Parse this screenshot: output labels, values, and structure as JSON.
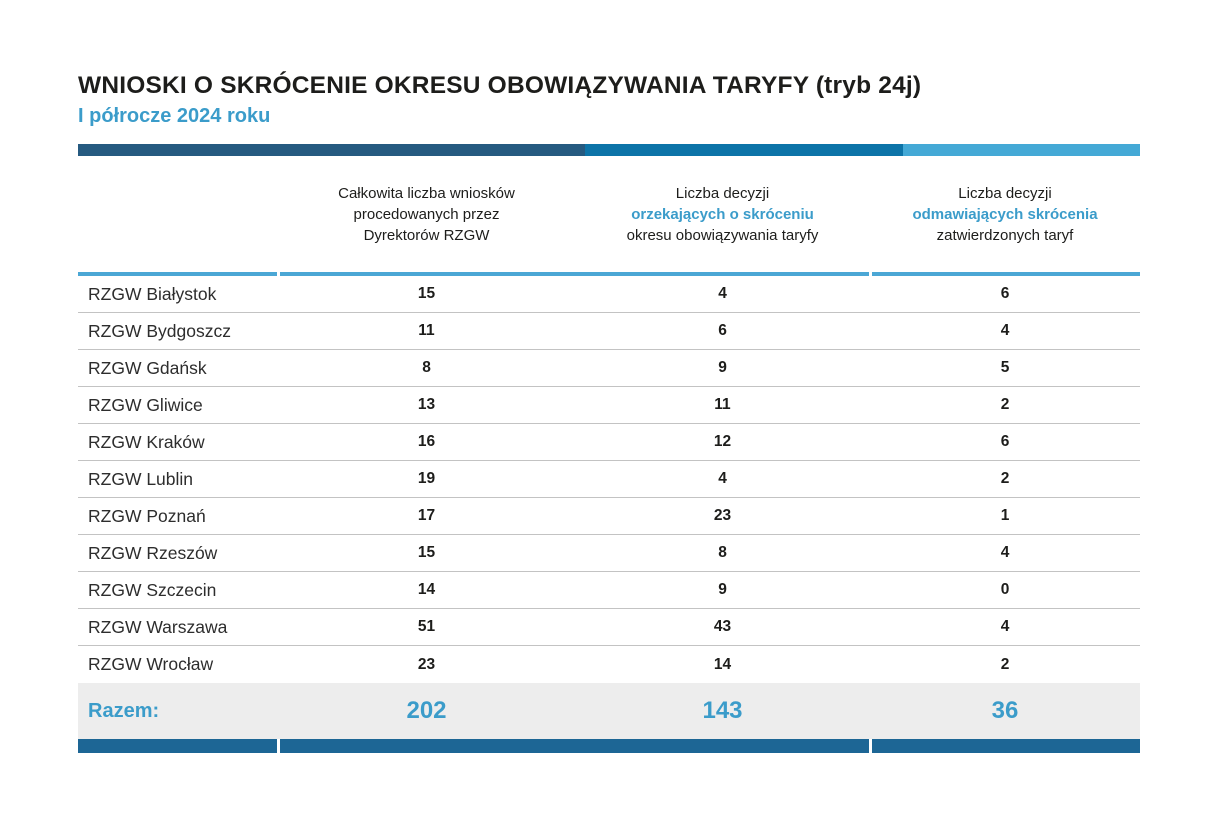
{
  "chart_data": {
    "type": "table",
    "title": "WNIOSKI O SKRÓCENIE OKRESU OBOWIĄZYWANIA TARYFY (tryb 24j)",
    "subtitle": "I półrocze 2024 roku",
    "columns": [
      {
        "lines": [
          "Całkowita liczba wniosków",
          "procedowanych przez",
          "Dyrektorów RZGW"
        ]
      },
      {
        "lines": [
          "Liczba decyzji",
          "orzekających o skróceniu",
          "okresu obowiązywania taryfy"
        ]
      },
      {
        "lines": [
          "Liczba decyzji",
          "odmawiających skrócenia",
          "zatwierdzonych taryf"
        ]
      }
    ],
    "rows": [
      {
        "label": "RZGW Białystok",
        "values": [
          15,
          4,
          6
        ]
      },
      {
        "label": "RZGW Bydgoszcz",
        "values": [
          11,
          6,
          4
        ]
      },
      {
        "label": "RZGW Gdańsk",
        "values": [
          8,
          9,
          5
        ]
      },
      {
        "label": "RZGW Gliwice",
        "values": [
          13,
          11,
          2
        ]
      },
      {
        "label": "RZGW Kraków",
        "values": [
          16,
          12,
          6
        ]
      },
      {
        "label": "RZGW Lublin",
        "values": [
          19,
          4,
          2
        ]
      },
      {
        "label": "RZGW Poznań",
        "values": [
          17,
          23,
          1
        ]
      },
      {
        "label": "RZGW Rzeszów",
        "values": [
          15,
          8,
          4
        ]
      },
      {
        "label": "RZGW Szczecin",
        "values": [
          14,
          9,
          0
        ]
      },
      {
        "label": "RZGW Warszawa",
        "values": [
          51,
          43,
          4
        ]
      },
      {
        "label": "RZGW Wrocław",
        "values": [
          23,
          14,
          2
        ]
      }
    ],
    "totals": {
      "label": "Razem:",
      "values": [
        202,
        143,
        36
      ]
    },
    "layout": {
      "grid": "off",
      "header_accent_line_index": 1
    }
  },
  "colors": {
    "title_color": "#1d1d1b",
    "accent_blue": "#3b9cca",
    "bar_dark": "#265a80",
    "bar_medium": "#0d74a8",
    "bar_light": "#44a9d6",
    "separator_blue": "#4ba7d5",
    "row_line": "#c3c3c3",
    "totals_bg": "#ededed",
    "bottom_bar": "#1d6695"
  }
}
